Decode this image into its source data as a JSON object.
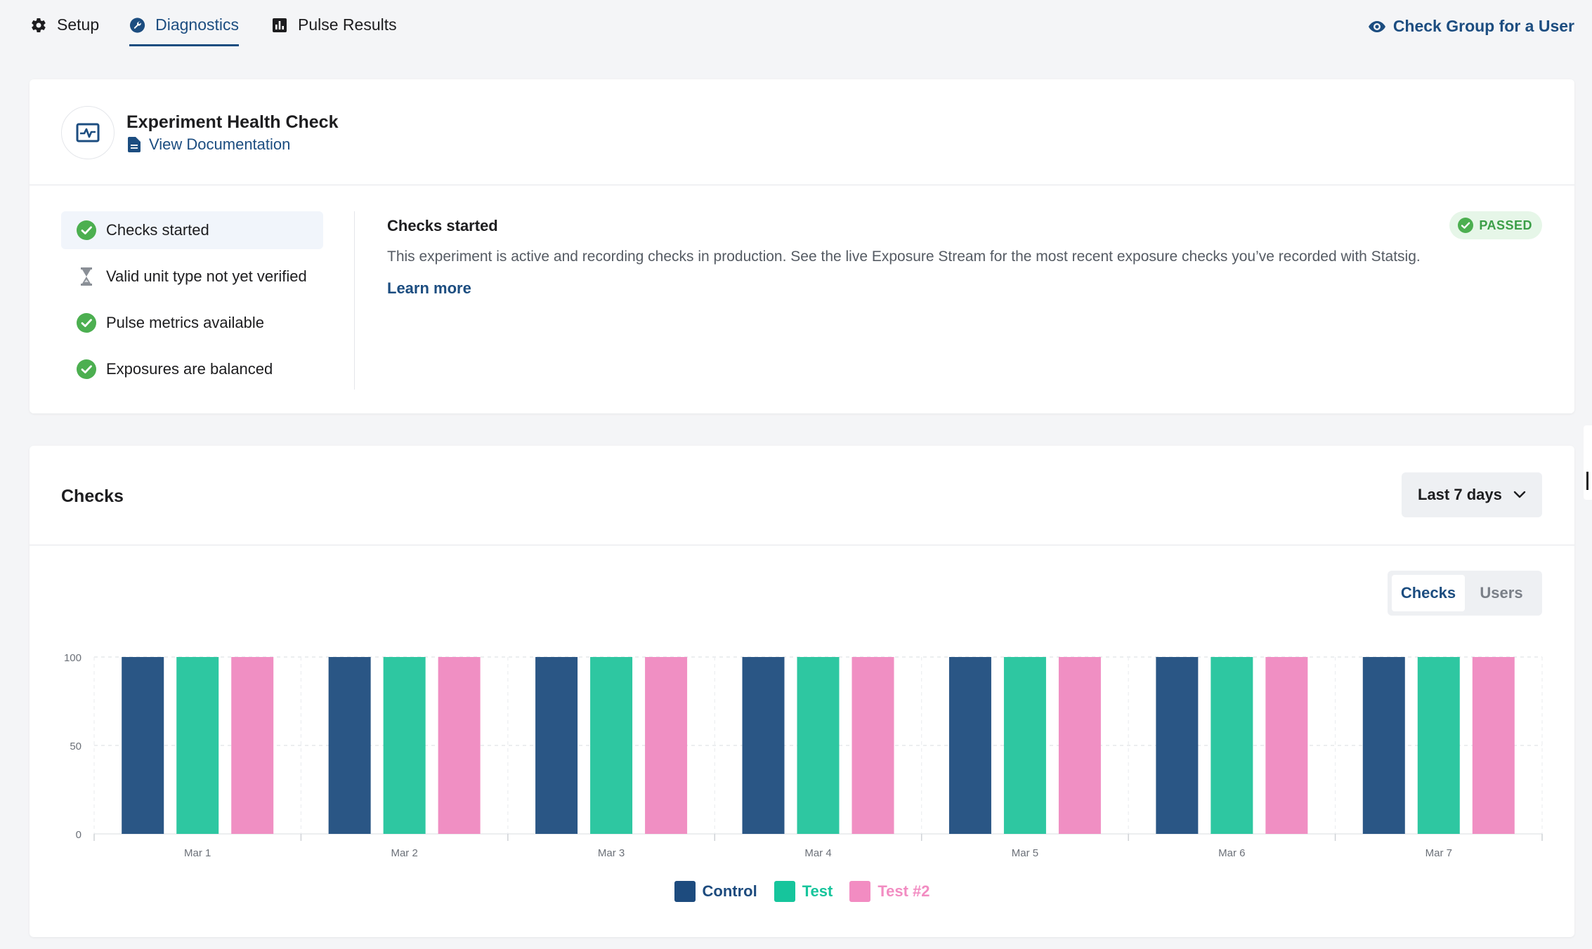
{
  "nav": {
    "tabs": [
      {
        "label": "Setup",
        "icon": "gear-icon"
      },
      {
        "label": "Diagnostics",
        "icon": "wrench-icon"
      },
      {
        "label": "Pulse Results",
        "icon": "bar-chart-icon"
      }
    ],
    "check_group_label": "Check Group for a User"
  },
  "health_check": {
    "title": "Experiment Health Check",
    "doc_link": "View Documentation",
    "items": [
      {
        "label": "Checks started",
        "status": "passed"
      },
      {
        "label": "Valid unit type not yet verified",
        "status": "pending"
      },
      {
        "label": "Pulse metrics available",
        "status": "passed"
      },
      {
        "label": "Exposures are balanced",
        "status": "passed"
      }
    ],
    "detail": {
      "title": "Checks started",
      "badge": "PASSED",
      "text": "This experiment is active and recording checks in production. See the live Exposure Stream for the most recent exposure checks you’ve recorded with Statsig.",
      "link": "Learn more"
    }
  },
  "checks_card": {
    "title": "Checks",
    "range": "Last 7 days",
    "toggle": [
      "Checks",
      "Users"
    ],
    "toggle_active": "Checks"
  },
  "colors": {
    "accent": "#1c4d80",
    "passed": "#4caf50",
    "control": "#2a5685",
    "test": "#2ec7a1",
    "test2": "#f08fc3"
  },
  "chart_data": {
    "type": "bar",
    "categories": [
      "Mar 1",
      "Mar 2",
      "Mar 3",
      "Mar 4",
      "Mar 5",
      "Mar 6",
      "Mar 7"
    ],
    "series": [
      {
        "name": "Control",
        "values": [
          100,
          100,
          100,
          100,
          100,
          100,
          100
        ]
      },
      {
        "name": "Test",
        "values": [
          100,
          100,
          100,
          100,
          100,
          100,
          100
        ]
      },
      {
        "name": "Test #2",
        "values": [
          100,
          100,
          100,
          100,
          100,
          100,
          100
        ]
      }
    ],
    "yticks": [
      "0",
      "50",
      "100"
    ],
    "ylim": [
      0,
      100
    ],
    "grid": true,
    "legend": "bottom"
  }
}
